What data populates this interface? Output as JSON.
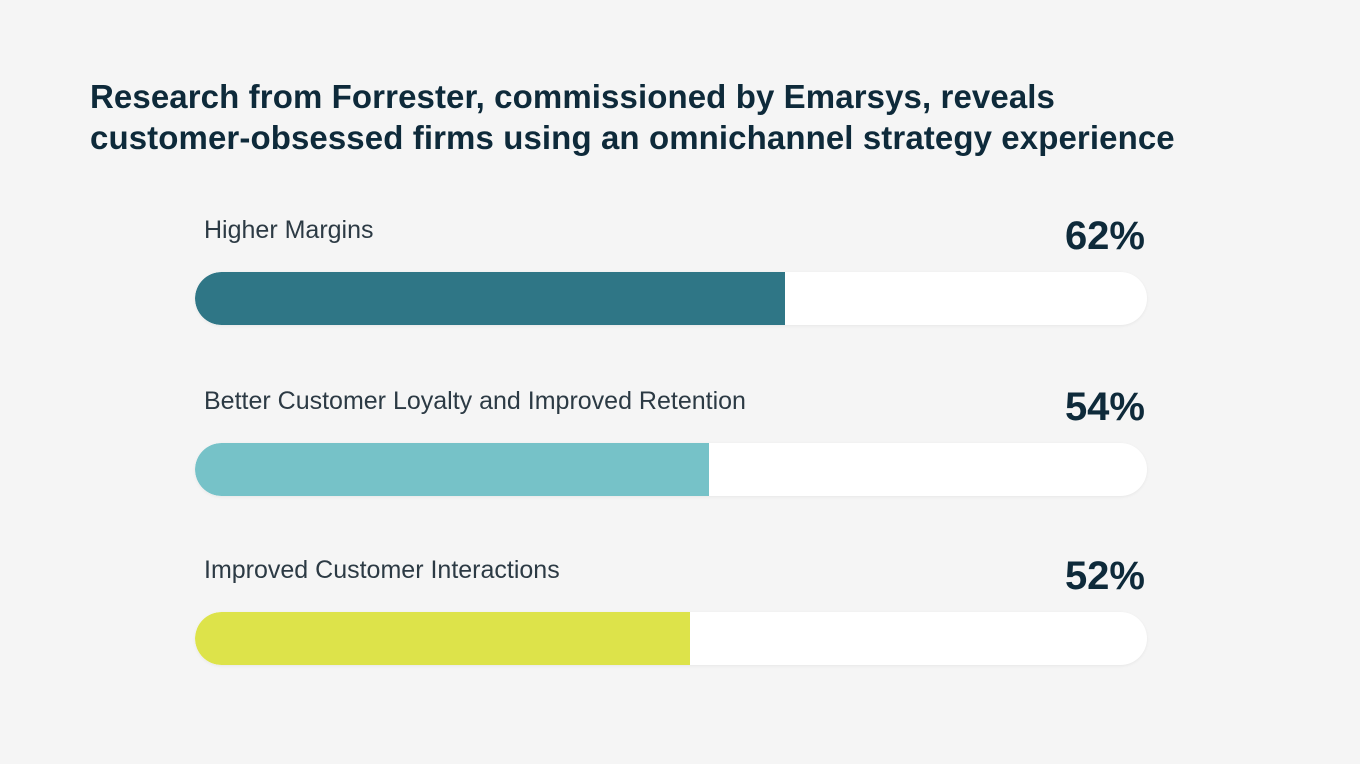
{
  "title_lines": [
    "Research from Forrester, commissioned by Emarsys, reveals",
    "customer-obsessed firms using an omnichannel strategy experience"
  ],
  "chart_data": {
    "type": "bar",
    "orientation": "horizontal",
    "title": "Research from Forrester, commissioned by Emarsys, reveals customer-obsessed firms using an omnichannel strategy experience",
    "categories": [
      "Higher Margins",
      "Better Customer Loyalty and Improved Retention",
      "Improved Customer Interactions"
    ],
    "values": [
      62,
      54,
      52
    ],
    "value_labels": [
      "62%",
      "54%",
      "52%"
    ],
    "colors": [
      "#2f7686",
      "#76c2c8",
      "#dde34a"
    ],
    "track_color": "#ffffff",
    "xlim": [
      0,
      100
    ],
    "grid": false,
    "legend": "none"
  }
}
